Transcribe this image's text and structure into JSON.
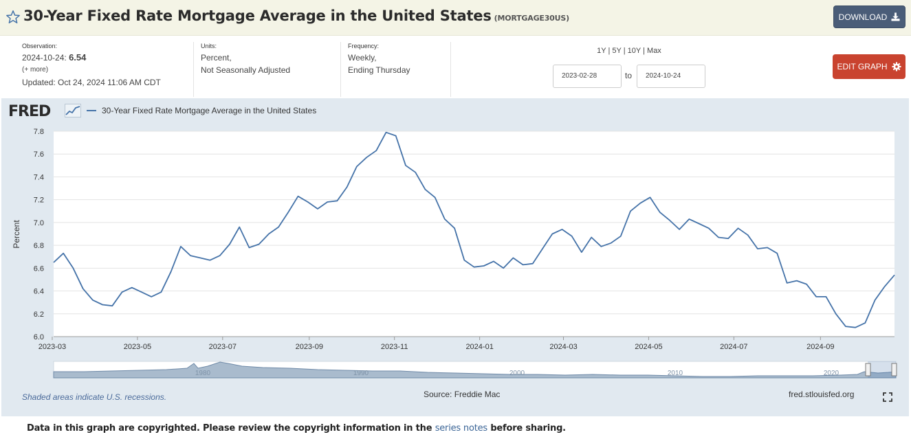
{
  "header": {
    "title": "30-Year Fixed Rate Mortgage Average in the United States",
    "series_id": "(MORTGAGE30US)",
    "download_label": "DOWNLOAD"
  },
  "meta": {
    "observation_label": "Observation:",
    "observation_date": "2024-10-24:",
    "observation_value": "6.54",
    "more_link": "(+ more)",
    "updated": "Updated: Oct 24, 2024 11:06 AM CDT",
    "units_label": "Units:",
    "units_line1": "Percent,",
    "units_line2": "Not Seasonally Adjusted",
    "frequency_label": "Frequency:",
    "frequency_line1": "Weekly,",
    "frequency_line2": "Ending Thursday"
  },
  "range": {
    "y1": "1Y",
    "y5": "5Y",
    "y10": "10Y",
    "max": "Max",
    "sep": "|",
    "start": "2023-02-28",
    "to": "to",
    "end": "2024-10-24"
  },
  "edit_label": "EDIT GRAPH",
  "graph": {
    "logo": "FRED",
    "recession_note": "Shaded areas indicate U.S. recessions.",
    "source": "Source: Freddie Mac",
    "site": "fred.stlouisfed.org",
    "navigator_labels": [
      "1980",
      "1990",
      "2000",
      "2010",
      "2020"
    ]
  },
  "footer": {
    "pre": "Data in this graph are copyrighted. Please review the copyright information in the",
    "link": "series notes",
    "post": "before sharing."
  },
  "colors": {
    "line": "#4472a8",
    "download": "#4a5d78",
    "edit": "#c9432f",
    "panel": "#e1e9f0"
  },
  "chart_data": {
    "type": "line",
    "title": "30-Year Fixed Rate Mortgage Average in the United States",
    "ylabel": "Percent",
    "xlabel": "",
    "ylim": [
      6.0,
      7.8
    ],
    "y_ticks": [
      "6.0",
      "6.2",
      "6.4",
      "6.6",
      "6.8",
      "7.0",
      "7.2",
      "7.4",
      "7.6",
      "7.8"
    ],
    "x_ticks": [
      "2023-03",
      "2023-05",
      "2023-07",
      "2023-09",
      "2023-11",
      "2024-01",
      "2024-03",
      "2024-05",
      "2024-07",
      "2024-09"
    ],
    "x_start": "2023-03-02",
    "x_end": "2024-10-24",
    "series": [
      {
        "name": "30-Year Fixed Rate Mortgage Average in the United States",
        "values": [
          6.65,
          6.73,
          6.6,
          6.42,
          6.32,
          6.28,
          6.27,
          6.39,
          6.43,
          6.39,
          6.35,
          6.39,
          6.57,
          6.79,
          6.71,
          6.69,
          6.67,
          6.71,
          6.81,
          6.96,
          6.78,
          6.81,
          6.9,
          6.96,
          7.09,
          7.23,
          7.18,
          7.12,
          7.18,
          7.19,
          7.31,
          7.49,
          7.57,
          7.63,
          7.79,
          7.76,
          7.5,
          7.44,
          7.29,
          7.22,
          7.03,
          6.95,
          6.67,
          6.61,
          6.62,
          6.66,
          6.6,
          6.69,
          6.63,
          6.64,
          6.77,
          6.9,
          6.94,
          6.88,
          6.74,
          6.87,
          6.79,
          6.82,
          6.88,
          7.1,
          7.17,
          7.22,
          7.09,
          7.02,
          6.94,
          7.03,
          6.99,
          6.95,
          6.87,
          6.86,
          6.95,
          6.89,
          6.77,
          6.78,
          6.73,
          6.47,
          6.49,
          6.46,
          6.35,
          6.35,
          6.2,
          6.09,
          6.08,
          6.12,
          6.32,
          6.44,
          6.54
        ]
      }
    ]
  }
}
